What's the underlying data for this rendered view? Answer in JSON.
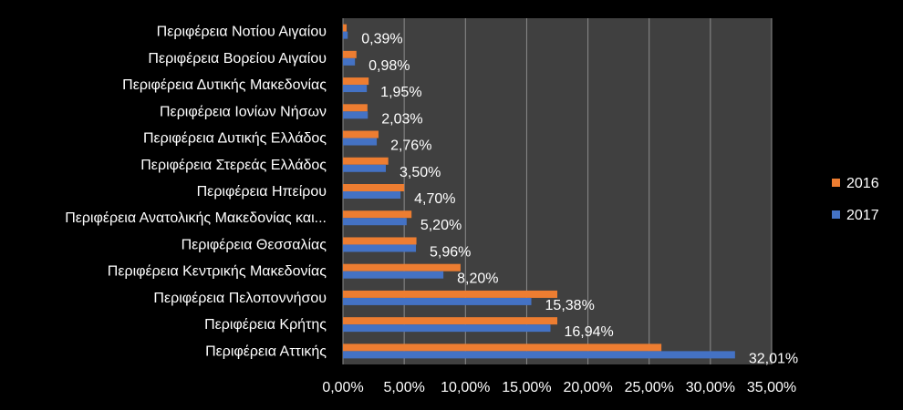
{
  "chart_data": {
    "type": "bar",
    "orientation": "horizontal",
    "categories": [
      "Περιφέρεια Νοτίου Αιγαίου",
      "Περιφέρεια Βορείου Αιγαίου",
      "Περιφέρεια Δυτικής Μακεδονίας",
      "Περιφέρεια Ιονίων Νήσων",
      "Περιφέρεια Δυτικής Ελλάδος",
      "Περιφέρεια Στερεάς Ελλάδος",
      "Περιφέρεια Ηπείρου",
      "Περιφέρεια Ανατολικής Μακεδονίας και...",
      "Περιφέρεια Θεσσαλίας",
      "Περιφέρεια Κεντρικής Μακεδονίας",
      "Περιφέρεια Πελοποννήσου",
      "Περιφέρεια Κρήτης",
      "Περιφέρεια Αττικής"
    ],
    "series": [
      {
        "name": "2016",
        "color": "#ED7D31",
        "values": [
          0.3,
          1.1,
          2.1,
          2.0,
          2.9,
          3.7,
          5.0,
          5.6,
          6.0,
          9.6,
          17.5,
          17.5,
          26.0
        ]
      },
      {
        "name": "2017",
        "color": "#4472C4",
        "values": [
          0.39,
          0.98,
          1.95,
          2.03,
          2.76,
          3.5,
          4.7,
          5.2,
          5.96,
          8.2,
          15.38,
          16.94,
          32.01
        ]
      }
    ],
    "data_labels": [
      "0,39%",
      "0,98%",
      "1,95%",
      "2,03%",
      "2,76%",
      "3,50%",
      "4,70%",
      "5,20%",
      "5,96%",
      "8,20%",
      "15,38%",
      "16,94%",
      "32,01%"
    ],
    "xlim": [
      0,
      35
    ],
    "x_ticks": [
      "0,00%",
      "5,00%",
      "10,00%",
      "15,00%",
      "20,00%",
      "25,00%",
      "30,00%",
      "35,00%"
    ],
    "grid": true,
    "legend_position": "right",
    "plot_background": "#404040",
    "gridline_color": "#8c8c8c"
  }
}
